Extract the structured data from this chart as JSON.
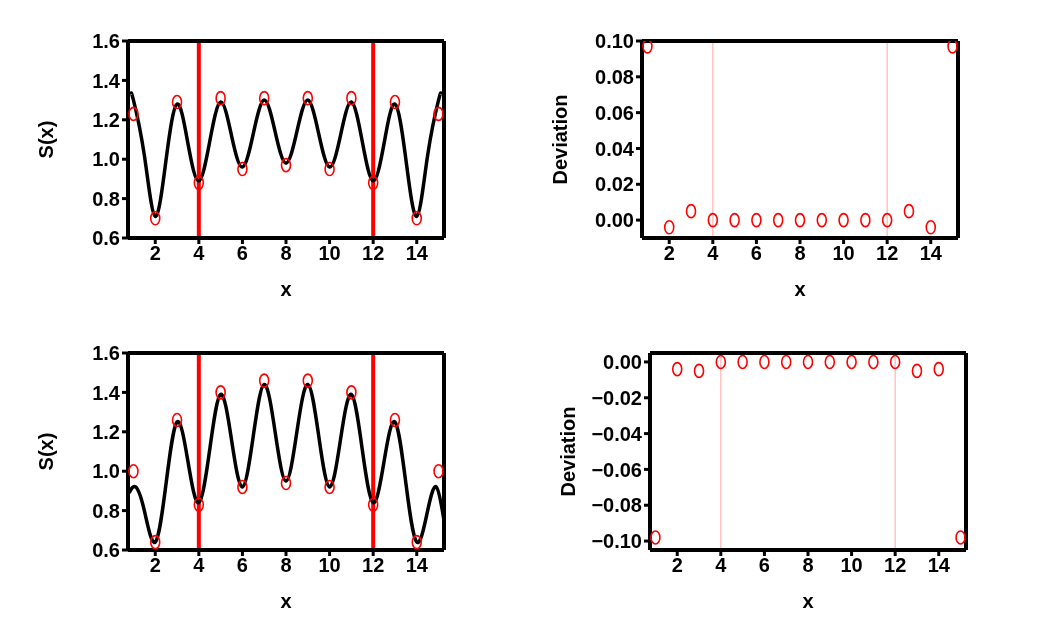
{
  "chart_data": [
    {
      "type": "scatter",
      "xlabel": "x",
      "ylabel": "S(x)",
      "xlim": [
        0.75,
        15.25
      ],
      "xticks": [
        2,
        4,
        6,
        8,
        10,
        12,
        14
      ],
      "ylim": [
        0.6,
        1.6
      ],
      "yticks": [
        {
          "value": 0.6,
          "label": "0.6"
        },
        {
          "value": 0.8,
          "label": "0.8"
        },
        {
          "value": 1,
          "label": "1.0"
        },
        {
          "value": 1.2,
          "label": "1.2"
        },
        {
          "value": 1.4,
          "label": "1.4"
        },
        {
          "value": 1.6,
          "label": "1.6"
        }
      ],
      "series": [
        {
          "type": "line",
          "marker": "none",
          "color": "#000000",
          "x": [
            0.9,
            1,
            1.5,
            2,
            2.5,
            3,
            3.5,
            4,
            4.5,
            5,
            5.5,
            6,
            6.5,
            7,
            7.5,
            8,
            8.5,
            9,
            9.5,
            10,
            10.5,
            11,
            11.5,
            12,
            12.5,
            13,
            13.5,
            14,
            14.5,
            15,
            15.1
          ],
          "values": [
            1.33,
            1.3,
            1.02,
            0.71,
            1.0,
            1.28,
            1.08,
            0.89,
            1.09,
            1.29,
            1.12,
            0.96,
            1.13,
            1.3,
            1.14,
            0.98,
            1.14,
            1.3,
            1.13,
            0.96,
            1.12,
            1.29,
            1.09,
            0.89,
            1.08,
            1.28,
            1.0,
            0.71,
            1.02,
            1.3,
            1.33
          ]
        },
        {
          "marker": "circle",
          "color": "#ff0000",
          "x": [
            1,
            2,
            3,
            4,
            5,
            6,
            7,
            8,
            9,
            10,
            11,
            12,
            13,
            14,
            15
          ],
          "values": [
            1.23,
            0.7,
            1.29,
            0.88,
            1.31,
            0.95,
            1.31,
            0.97,
            1.31,
            0.95,
            1.31,
            0.88,
            1.29,
            0.7,
            1.23
          ]
        }
      ],
      "ref_lines": [
        {
          "axis": "x",
          "value": 4,
          "color": "#ff0000"
        },
        {
          "axis": "x",
          "value": 12,
          "color": "#ff0000"
        }
      ]
    },
    {
      "type": "scatter",
      "xlabel": "x",
      "ylabel": "Deviation",
      "xlim": [
        0.75,
        15.25
      ],
      "xticks": [
        2,
        4,
        6,
        8,
        10,
        12,
        14
      ],
      "ylim": [
        -0.01,
        0.1
      ],
      "yticks": [
        {
          "value": 0,
          "label": "0.00"
        },
        {
          "value": 0.02,
          "label": "0.02"
        },
        {
          "value": 0.04,
          "label": "0.04"
        },
        {
          "value": 0.06,
          "label": "0.06"
        },
        {
          "value": 0.08,
          "label": "0.08"
        },
        {
          "value": 0.1,
          "label": "0.10"
        }
      ],
      "marker": "circle",
      "series": [
        {
          "color": "#ff0000",
          "x": [
            1,
            2,
            3,
            4,
            5,
            6,
            7,
            8,
            9,
            10,
            11,
            12,
            13,
            14,
            15
          ],
          "values": [
            0.097,
            -0.004,
            0.005,
            0,
            0,
            0,
            0,
            0,
            0,
            0,
            0,
            0,
            0.005,
            -0.004,
            0.097
          ]
        }
      ],
      "ref_lines": [
        {
          "axis": "x",
          "value": 4,
          "color": "#ffb3b3"
        },
        {
          "axis": "x",
          "value": 12,
          "color": "#ffb3b3"
        }
      ]
    },
    {
      "type": "scatter",
      "xlabel": "x",
      "ylabel": "S(x)",
      "xlim": [
        0.75,
        15.25
      ],
      "xticks": [
        2,
        4,
        6,
        8,
        10,
        12,
        14
      ],
      "ylim": [
        0.6,
        1.6
      ],
      "yticks": [
        {
          "value": 0.6,
          "label": "0.6"
        },
        {
          "value": 0.8,
          "label": "0.8"
        },
        {
          "value": 1,
          "label": "1.0"
        },
        {
          "value": 1.2,
          "label": "1.2"
        },
        {
          "value": 1.4,
          "label": "1.4"
        },
        {
          "value": 1.6,
          "label": "1.6"
        }
      ],
      "series": [
        {
          "type": "line",
          "marker": "none",
          "color": "#000000",
          "x": [
            0.8,
            1.1,
            1.5,
            2,
            2.5,
            3,
            3.5,
            4,
            4.5,
            5,
            5.5,
            6,
            6.5,
            7,
            7.5,
            8,
            8.5,
            9,
            9.5,
            10,
            10.5,
            11,
            11.5,
            12,
            12.5,
            13,
            13.5,
            14,
            14.5,
            14.9,
            15.25
          ],
          "values": [
            0.89,
            0.92,
            0.8,
            0.64,
            0.94,
            1.25,
            1.05,
            0.84,
            1.11,
            1.39,
            1.16,
            0.92,
            1.18,
            1.44,
            1.2,
            0.95,
            1.2,
            1.44,
            1.18,
            0.92,
            1.16,
            1.39,
            1.11,
            0.84,
            1.05,
            1.25,
            0.94,
            0.64,
            0.8,
            0.92,
            0.75
          ]
        },
        {
          "marker": "circle",
          "color": "#ff0000",
          "x": [
            1,
            2,
            3,
            4,
            5,
            6,
            7,
            8,
            9,
            10,
            11,
            12,
            13,
            14,
            15
          ],
          "values": [
            1.0,
            0.64,
            1.26,
            0.83,
            1.4,
            0.92,
            1.46,
            0.94,
            1.46,
            0.92,
            1.4,
            0.83,
            1.26,
            0.64,
            1.0
          ]
        }
      ],
      "ref_lines": [
        {
          "axis": "x",
          "value": 4,
          "color": "#ff0000"
        },
        {
          "axis": "x",
          "value": 12,
          "color": "#ff0000"
        }
      ]
    },
    {
      "type": "scatter",
      "xlabel": "x",
      "ylabel": "Deviation",
      "xlim": [
        0.75,
        15.25
      ],
      "xticks": [
        2,
        4,
        6,
        8,
        10,
        12,
        14
      ],
      "ylim": [
        -0.105,
        0.005
      ],
      "yticks": [
        {
          "value": -0.1,
          "label": "−0.10"
        },
        {
          "value": -0.08,
          "label": "−0.08"
        },
        {
          "value": -0.06,
          "label": "−0.06"
        },
        {
          "value": -0.04,
          "label": "−0.04"
        },
        {
          "value": -0.02,
          "label": "−0.02"
        },
        {
          "value": 0,
          "label": "0.00"
        }
      ],
      "marker": "circle",
      "series": [
        {
          "color": "#ff0000",
          "x": [
            1,
            2,
            3,
            4,
            5,
            6,
            7,
            8,
            9,
            10,
            11,
            12,
            13,
            14,
            15
          ],
          "values": [
            -0.098,
            -0.004,
            -0.005,
            0,
            0,
            0,
            0,
            0,
            0,
            0,
            0,
            0,
            -0.005,
            -0.004,
            -0.098
          ]
        }
      ],
      "ref_lines": [
        {
          "axis": "x",
          "value": 4,
          "color": "#ffb3b3"
        },
        {
          "axis": "x",
          "value": 12,
          "color": "#ffb3b3"
        }
      ]
    }
  ]
}
